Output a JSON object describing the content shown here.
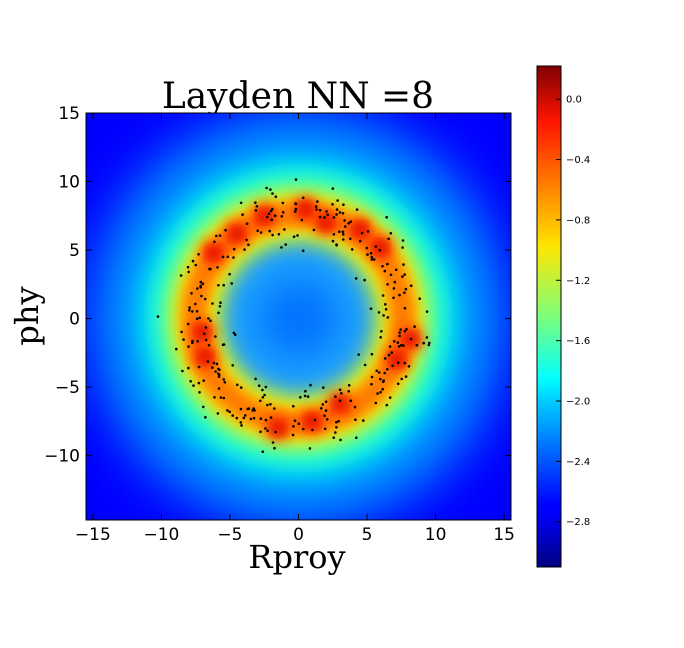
{
  "chart_data": {
    "type": "heatmap",
    "title": "Layden NN =8",
    "xlabel": "Rproy",
    "ylabel": "phy",
    "xlim": [
      -15.5,
      15.5
    ],
    "ylim": [
      -14.7,
      15
    ],
    "xticks": [
      -15,
      -10,
      -5,
      0,
      5,
      10,
      15
    ],
    "yticks": [
      -10,
      -5,
      0,
      5,
      10,
      15
    ],
    "xtick_labels": [
      "−15",
      "−10",
      "−5",
      "0",
      "5",
      "10",
      "15"
    ],
    "ytick_labels": [
      "−10",
      "−5",
      "0",
      "5",
      "10",
      "15"
    ],
    "colormap": "jet",
    "colorbar": {
      "min": -3.1,
      "max": 0.22,
      "ticks": [
        0.0,
        -0.4,
        -0.8,
        -1.2,
        -1.6,
        -2.0,
        -2.4,
        -2.8
      ],
      "tick_labels": [
        "0.0",
        "−0.4",
        "−0.8",
        "−1.2",
        "−1.6",
        "−2.0",
        "−2.4",
        "−2.8"
      ]
    },
    "ring": {
      "center": [
        0,
        0
      ],
      "radius": 7.6,
      "width": 2.2
    },
    "hotspots": [
      {
        "x": -2.5,
        "y": 7.5
      },
      {
        "x": 0.5,
        "y": 8.0
      },
      {
        "x": 2.0,
        "y": 7.0
      },
      {
        "x": -4.5,
        "y": 6.2
      },
      {
        "x": 6.0,
        "y": 5.2
      },
      {
        "x": -6.2,
        "y": 4.8
      },
      {
        "x": 8.2,
        "y": -1.5
      },
      {
        "x": 7.2,
        "y": -3.0
      },
      {
        "x": -6.8,
        "y": -2.8
      },
      {
        "x": -1.5,
        "y": -8.0
      },
      {
        "x": 1.0,
        "y": -7.5
      },
      {
        "x": 3.0,
        "y": -6.2
      },
      {
        "x": -7.0,
        "y": -1.0
      },
      {
        "x": 4.5,
        "y": 6.5
      }
    ],
    "grid": false,
    "scatter_points": "black dots along ring, approx. 330 points"
  },
  "colors": {
    "points": "#000000",
    "frame": "#000000"
  }
}
